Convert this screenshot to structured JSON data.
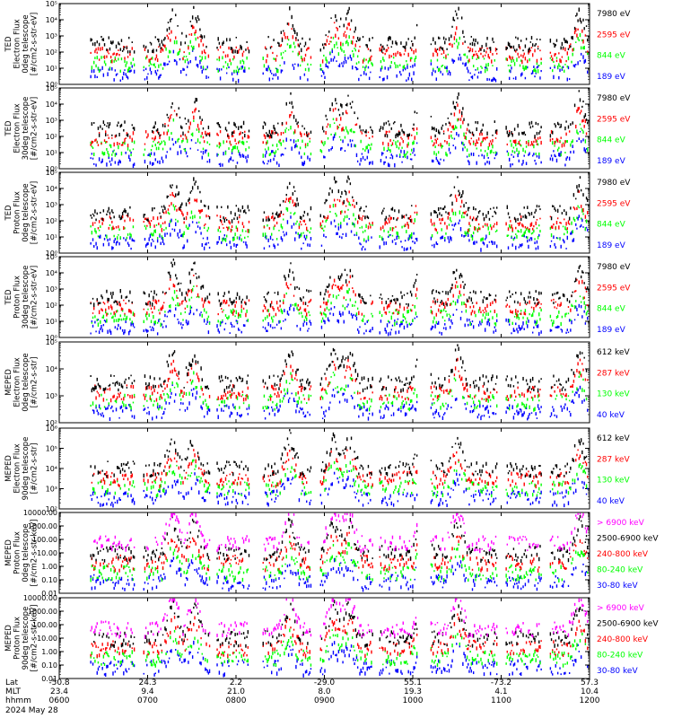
{
  "colors": {
    "black": "#000000",
    "red": "#ff0000",
    "green": "#00ff00",
    "blue": "#0000ff",
    "magenta": "#ff00ff",
    "background": "#ffffff"
  },
  "chart_data": {
    "type": "scatter",
    "date": "2024 May 28",
    "x_axis": {
      "row_labels": [
        "Lat",
        "MLT",
        "hhmm"
      ],
      "ticks": [
        {
          "time": "0600",
          "lat": "-50.8",
          "mlt": "23.4"
        },
        {
          "time": "0700",
          "lat": "24.3",
          "mlt": "9.4"
        },
        {
          "time": "0800",
          "lat": "2.2",
          "mlt": "21.0"
        },
        {
          "time": "0900",
          "lat": "-29.0",
          "mlt": "8.0"
        },
        {
          "time": "1000",
          "lat": "55.1",
          "mlt": "19.3"
        },
        {
          "time": "1100",
          "lat": "-73.2",
          "mlt": "4.1"
        },
        {
          "time": "1200",
          "lat": "57.3",
          "mlt": "10.4"
        }
      ],
      "range_hours": [
        6,
        12
      ]
    },
    "panels": [
      {
        "ylabel": [
          "TED",
          "Electron Flux",
          "0deg telescope",
          "[#/cm2-s-str-eV]"
        ],
        "scale": "log",
        "ylim_exp": [
          0,
          5
        ],
        "tick_labels": [
          "10⁰",
          "10¹",
          "10²",
          "10³",
          "10⁴",
          "10⁵"
        ],
        "series": [
          {
            "name": "7980 eV",
            "color": "black"
          },
          {
            "name": "2595 eV",
            "color": "red"
          },
          {
            "name": "844 eV",
            "color": "green"
          },
          {
            "name": "189 eV",
            "color": "blue"
          }
        ]
      },
      {
        "ylabel": [
          "TED",
          "Electron Flux",
          "30deg telescope",
          "[#/cm2-s-str-eV]"
        ],
        "scale": "log",
        "ylim_exp": [
          0,
          5
        ],
        "tick_labels": [
          "10⁰",
          "10¹",
          "10²",
          "10³",
          "10⁴",
          "10⁵"
        ],
        "series": [
          {
            "name": "7980 eV",
            "color": "black"
          },
          {
            "name": "2595 eV",
            "color": "red"
          },
          {
            "name": "844 eV",
            "color": "green"
          },
          {
            "name": "189 eV",
            "color": "blue"
          }
        ]
      },
      {
        "ylabel": [
          "TED",
          "Proton Flux",
          "0deg telescope",
          "[#/cm2-s-str-eV]"
        ],
        "scale": "log",
        "ylim_exp": [
          0,
          5
        ],
        "tick_labels": [
          "10⁰",
          "10¹",
          "10²",
          "10³",
          "10⁴",
          "10⁵"
        ],
        "series": [
          {
            "name": "7980 eV",
            "color": "black"
          },
          {
            "name": "2595 eV",
            "color": "red"
          },
          {
            "name": "844 eV",
            "color": "green"
          },
          {
            "name": "189 eV",
            "color": "blue"
          }
        ]
      },
      {
        "ylabel": [
          "TED",
          "Proton Flux",
          "30deg telescope",
          "[#/cm2-s-str-eV]"
        ],
        "scale": "log",
        "ylim_exp": [
          0,
          5
        ],
        "tick_labels": [
          "10⁰",
          "10¹",
          "10²",
          "10³",
          "10⁴",
          "10⁵"
        ],
        "series": [
          {
            "name": "7980 eV",
            "color": "black"
          },
          {
            "name": "2595 eV",
            "color": "red"
          },
          {
            "name": "844 eV",
            "color": "green"
          },
          {
            "name": "189 eV",
            "color": "blue"
          }
        ]
      },
      {
        "ylabel": [
          "MEPED",
          "Electron Flux",
          "0deg telescope",
          "[#/cm2-s-str]"
        ],
        "scale": "log",
        "ylim_exp": [
          2,
          5
        ],
        "tick_labels": [
          "10²",
          "10³",
          "10⁴",
          "10⁵"
        ],
        "series": [
          {
            "name": "612 keV",
            "color": "black"
          },
          {
            "name": "287 keV",
            "color": "red"
          },
          {
            "name": "130 keV",
            "color": "green"
          },
          {
            "name": "40 keV",
            "color": "blue"
          }
        ]
      },
      {
        "ylabel": [
          "MEPED",
          "Electron Flux",
          "90deg telescope",
          "[#/cm2-s-str]"
        ],
        "scale": "log",
        "ylim_exp": [
          2,
          6
        ],
        "tick_labels": [
          "10²",
          "10³",
          "10⁴",
          "10⁵",
          "10⁶"
        ],
        "series": [
          {
            "name": "612 keV",
            "color": "black"
          },
          {
            "name": "287 keV",
            "color": "red"
          },
          {
            "name": "130 keV",
            "color": "green"
          },
          {
            "name": "40 keV",
            "color": "blue"
          }
        ]
      },
      {
        "ylabel": [
          "MEPED",
          "Proton Flux",
          "0deg telescope",
          "[#/cm2-s-str-keV]"
        ],
        "scale": "log",
        "ylim_exp": [
          -2,
          4
        ],
        "tick_labels": [
          "0.01",
          "0.10",
          "1.00",
          "10.00",
          "100.00",
          "1000.00",
          "10000.00"
        ],
        "series": [
          {
            "name": "> 6900 keV",
            "color": "magenta"
          },
          {
            "name": "2500-6900 keV",
            "color": "black"
          },
          {
            "name": "240-800 keV",
            "color": "red"
          },
          {
            "name": "80-240 keV",
            "color": "green"
          },
          {
            "name": "30-80 keV",
            "color": "blue"
          }
        ]
      },
      {
        "ylabel": [
          "MEPED",
          "Proton Flux",
          "90deg telescope",
          "[#/cm2-s-str-keV]"
        ],
        "scale": "log",
        "ylim_exp": [
          -2,
          4
        ],
        "tick_labels": [
          "0.01",
          "0.10",
          "1.00",
          "10.00",
          "100.00",
          "1000.00",
          "10000.00"
        ],
        "series": [
          {
            "name": "> 6900 keV",
            "color": "magenta"
          },
          {
            "name": "2500-6900 keV",
            "color": "black"
          },
          {
            "name": "240-800 keV",
            "color": "red"
          },
          {
            "name": "80-240 keV",
            "color": "green"
          },
          {
            "name": "30-80 keV",
            "color": "blue"
          }
        ]
      }
    ]
  }
}
